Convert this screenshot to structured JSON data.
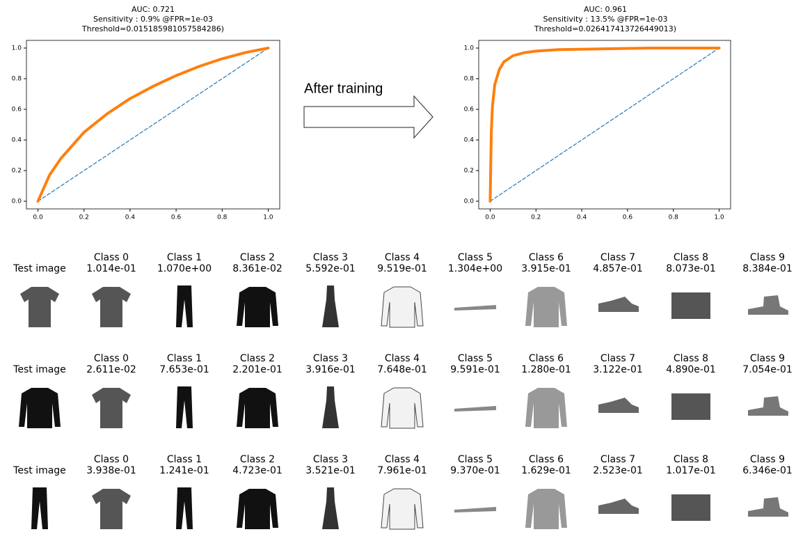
{
  "chart_data": [
    {
      "type": "line",
      "title": [
        "AUC: 0.721",
        "Sensitivity : 0.9% @FPR=1e-03",
        "Threshold=0.015185981057584286)"
      ],
      "xlim": [
        -0.05,
        1.05
      ],
      "ylim": [
        -0.05,
        1.05
      ],
      "xticks": [
        {
          "value": 0,
          "label": "0.0"
        },
        0.2,
        0.4,
        0.6,
        0.8,
        {
          "value": 1,
          "label": "1.0"
        }
      ],
      "yticks": [
        {
          "value": 0,
          "label": "0.0"
        },
        0.2,
        0.4,
        0.6,
        0.8,
        {
          "value": 1,
          "label": "1.0"
        }
      ],
      "grid": false,
      "series": [
        {
          "color": "#1f77b4",
          "dashed": true,
          "x": [
            0,
            1
          ],
          "values": [
            0,
            1
          ]
        },
        {
          "color": "#ff7f0e",
          "dashed": false,
          "x": [
            0,
            0.05,
            0.1,
            0.2,
            0.3,
            0.4,
            0.5,
            0.6,
            0.7,
            0.8,
            0.9,
            1.0
          ],
          "values": [
            0,
            0.17,
            0.28,
            0.45,
            0.57,
            0.67,
            0.75,
            0.82,
            0.88,
            0.93,
            0.97,
            1.0
          ]
        }
      ]
    },
    {
      "type": "line",
      "title": [
        "AUC: 0.961",
        "Sensitivity : 13.5% @FPR=1e-03",
        "Threshold=0.026417413726449013)"
      ],
      "xlim": [
        -0.05,
        1.05
      ],
      "ylim": [
        -0.05,
        1.05
      ],
      "xticks": [
        {
          "value": 0,
          "label": "0.0"
        },
        0.2,
        0.4,
        0.6,
        0.8,
        {
          "value": 1,
          "label": "1.0"
        }
      ],
      "yticks": [
        {
          "value": 0,
          "label": "0.0"
        },
        0.2,
        0.4,
        0.6,
        0.8,
        {
          "value": 1,
          "label": "1.0"
        }
      ],
      "grid": false,
      "series": [
        {
          "color": "#1f77b4",
          "dashed": true,
          "x": [
            0,
            1
          ],
          "values": [
            0,
            1
          ]
        },
        {
          "color": "#ff7f0e",
          "dashed": false,
          "x": [
            0,
            0.005,
            0.01,
            0.02,
            0.04,
            0.06,
            0.1,
            0.15,
            0.2,
            0.3,
            0.5,
            0.7,
            1.0
          ],
          "values": [
            0,
            0.45,
            0.62,
            0.76,
            0.86,
            0.91,
            0.95,
            0.97,
            0.98,
            0.99,
            0.995,
            1.0,
            1.0
          ]
        }
      ]
    }
  ],
  "annotation": "After training",
  "grid": {
    "rows": [
      {
        "label": "Test image",
        "cells": [
          {
            "name": "Class 0",
            "score": "1.014e-01"
          },
          {
            "name": "Class 1",
            "score": "1.070e+00"
          },
          {
            "name": "Class 2",
            "score": "8.361e-02"
          },
          {
            "name": "Class 3",
            "score": "5.592e-01"
          },
          {
            "name": "Class 4",
            "score": "9.519e-01"
          },
          {
            "name": "Class 5",
            "score": "1.304e+00"
          },
          {
            "name": "Class 6",
            "score": "3.915e-01"
          },
          {
            "name": "Class 7",
            "score": "4.857e-01"
          },
          {
            "name": "Class 8",
            "score": "8.073e-01"
          },
          {
            "name": "Class 9",
            "score": "8.384e-01"
          }
        ]
      },
      {
        "label": "Test image",
        "cells": [
          {
            "name": "Class 0",
            "score": "2.611e-02"
          },
          {
            "name": "Class 1",
            "score": "7.653e-01"
          },
          {
            "name": "Class 2",
            "score": "2.201e-01"
          },
          {
            "name": "Class 3",
            "score": "3.916e-01"
          },
          {
            "name": "Class 4",
            "score": "7.648e-01"
          },
          {
            "name": "Class 5",
            "score": "9.591e-01"
          },
          {
            "name": "Class 6",
            "score": "1.280e-01"
          },
          {
            "name": "Class 7",
            "score": "3.122e-01"
          },
          {
            "name": "Class 8",
            "score": "4.890e-01"
          },
          {
            "name": "Class 9",
            "score": "7.054e-01"
          }
        ]
      },
      {
        "label": "Test image",
        "cells": [
          {
            "name": "Class 0",
            "score": "3.938e-01"
          },
          {
            "name": "Class 1",
            "score": "1.241e-01"
          },
          {
            "name": "Class 2",
            "score": "4.723e-01"
          },
          {
            "name": "Class 3",
            "score": "3.521e-01"
          },
          {
            "name": "Class 4",
            "score": "7.961e-01"
          },
          {
            "name": "Class 5",
            "score": "9.370e-01"
          },
          {
            "name": "Class 6",
            "score": "1.629e-01"
          },
          {
            "name": "Class 7",
            "score": "2.523e-01"
          },
          {
            "name": "Class 8",
            "score": "1.017e-01"
          },
          {
            "name": "Class 9",
            "score": "6.346e-01"
          }
        ]
      }
    ]
  }
}
